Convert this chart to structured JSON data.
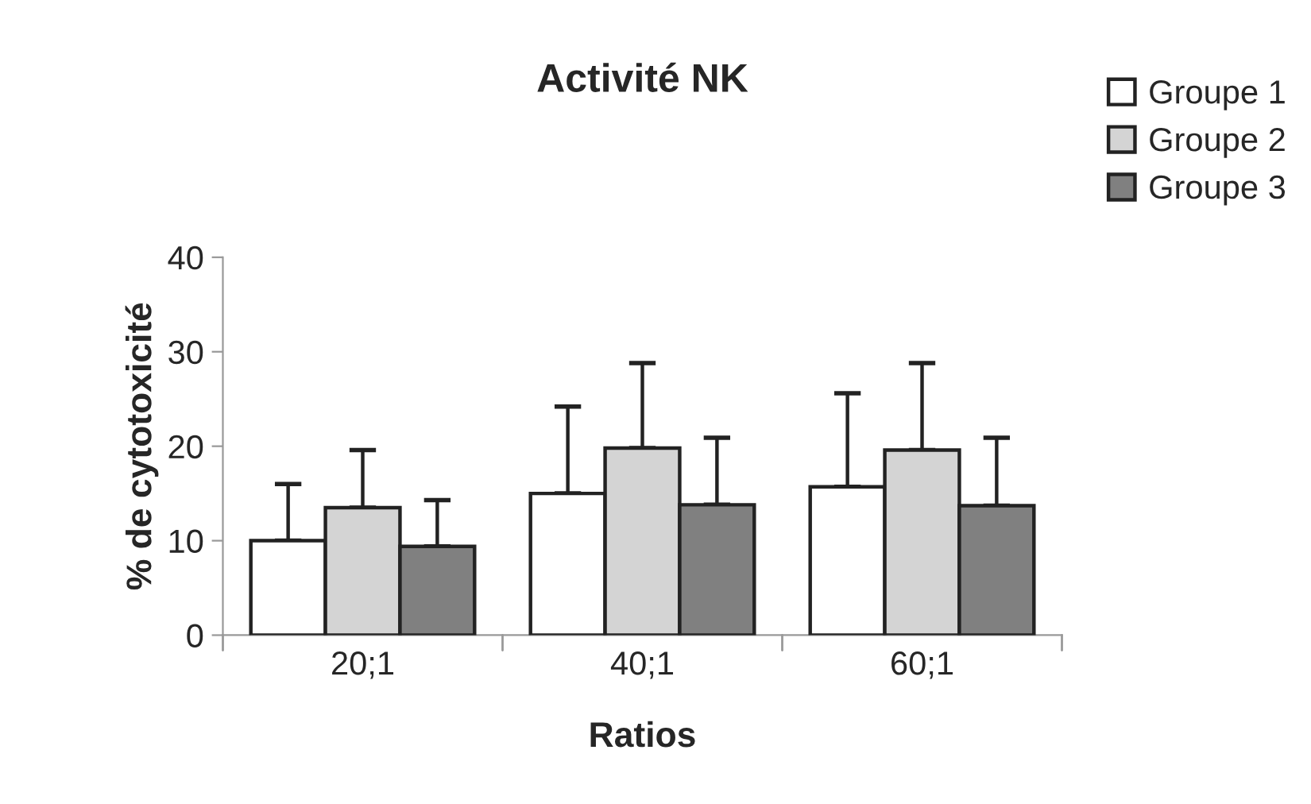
{
  "chart_data": {
    "type": "bar",
    "title": "Activité NK",
    "xlabel": "Ratios",
    "ylabel": "% de cytotoxicité",
    "categories": [
      "20;1",
      "40;1",
      "60;1"
    ],
    "series": [
      {
        "name": "Groupe 1",
        "color": "#ffffff",
        "values": [
          10,
          15,
          15.7
        ],
        "errors": [
          [
            10,
            16
          ],
          [
            15,
            24.2
          ],
          [
            15.7,
            25.6
          ]
        ]
      },
      {
        "name": "Groupe 2",
        "color": "#d4d4d4",
        "values": [
          13.5,
          19.8,
          19.6
        ],
        "errors": [
          [
            13.5,
            19.6
          ],
          [
            19.8,
            28.8
          ],
          [
            19.6,
            28.8
          ]
        ]
      },
      {
        "name": "Groupe 3",
        "color": "#808080",
        "values": [
          9.4,
          13.8,
          13.7
        ],
        "errors": [
          [
            9.4,
            14.3
          ],
          [
            13.8,
            20.9
          ],
          [
            13.7,
            20.9
          ]
        ]
      }
    ],
    "ylim": [
      0,
      40
    ],
    "yticks": [
      0,
      10,
      20,
      30,
      40
    ],
    "grid": false,
    "legend": "top right"
  }
}
